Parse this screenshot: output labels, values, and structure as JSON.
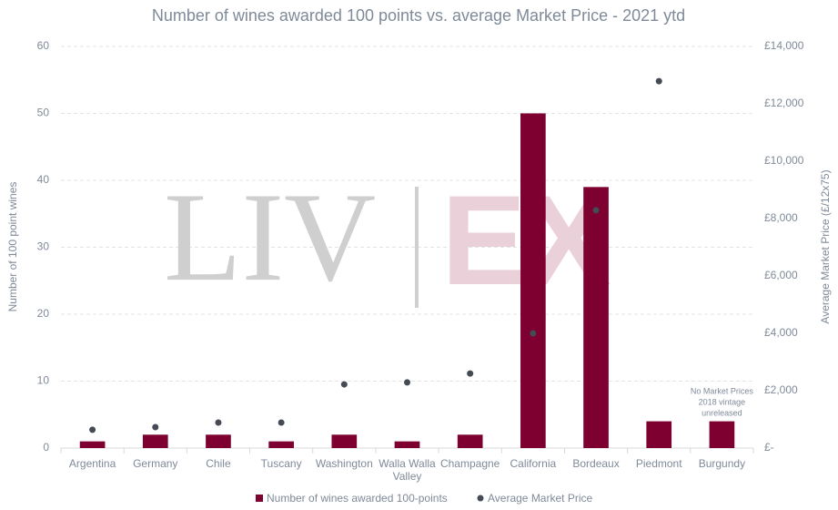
{
  "chart_data": {
    "type": "bar",
    "title": "Number of wines awarded 100 points vs. average Market Price - 2021 ytd",
    "watermark": [
      "LIV",
      "EX"
    ],
    "categories": [
      "Argentina",
      "Germany",
      "Chile",
      "Tuscany",
      "Washington",
      "Walla Walla Valley",
      "Champagne",
      "California",
      "Bordeaux",
      "Piedmont",
      "Burgundy"
    ],
    "series": [
      {
        "name": "Number of wines awarded 100-points",
        "type": "bar",
        "color": "#7d0030",
        "values": [
          1,
          2,
          2,
          1,
          2,
          1,
          2,
          50,
          39,
          4,
          4
        ]
      },
      {
        "name": "Average Market Price",
        "type": "scatter",
        "axis": "y2",
        "color": "#454b55",
        "values": [
          640,
          730,
          890,
          890,
          2220,
          2290,
          2600,
          4000,
          8290,
          12790,
          null
        ]
      }
    ],
    "ylabel": "Number of 100 point wines",
    "y2label": "Average Market Price (£/12x75)",
    "ylim": [
      0,
      60
    ],
    "yticks": [
      0,
      10,
      20,
      30,
      40,
      50,
      60
    ],
    "y2lim": [
      0,
      14000
    ],
    "y2ticks": [
      {
        "value": 0,
        "label": "£-"
      },
      {
        "value": 2000,
        "label": "£2,000"
      },
      {
        "value": 4000,
        "label": "£4,000"
      },
      {
        "value": 6000,
        "label": "£6,000"
      },
      {
        "value": 8000,
        "label": "£8,000"
      },
      {
        "value": 10000,
        "label": "£10,000"
      },
      {
        "value": 12000,
        "label": "£12,000"
      },
      {
        "value": 14000,
        "label": "£14,000"
      }
    ],
    "annotation": [
      "No Market Prices",
      "2018 vintage",
      "unreleased"
    ],
    "grid": true,
    "legend": "bottom"
  }
}
